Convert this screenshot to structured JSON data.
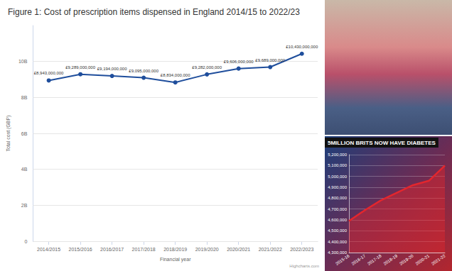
{
  "chart_data": [
    {
      "type": "line",
      "title": "Figure 1: Cost of prescription items dispensed in England 2014/15 to 2022/23",
      "x_label": "Financial year",
      "y_label": "Total cost (GBP)",
      "credit": "Highcharts.com",
      "categories": [
        "2014/2015",
        "2015/2016",
        "2016/2017",
        "2017/2018",
        "2018/2019",
        "2019/2020",
        "2020/2021",
        "2021/2022",
        "2022/2023"
      ],
      "values": [
        8943000000,
        9289000000,
        9194000000,
        9095000000,
        8834000000,
        9282000000,
        9606000000,
        9689000000,
        10430000000
      ],
      "value_labels": [
        "£8,943,000,000",
        "£9,289,000,000",
        "£9,194,000,000",
        "£9,095,000,000",
        "£8,834,000,000",
        "£9,282,000,000",
        "£9,606,000,000",
        "£9,689,000,000",
        "£10,430,000,000"
      ],
      "color": "#1f4e9c",
      "marker": "circle",
      "data_labels": true,
      "ylim": [
        0,
        12000000000
      ],
      "yticks": [
        0,
        {
          "value": 2000000000,
          "label": "2B"
        },
        {
          "value": 4000000000,
          "label": "4B"
        },
        {
          "value": 6000000000,
          "label": "6B"
        },
        {
          "value": 8000000000,
          "label": "8B"
        },
        {
          "value": 10000000000,
          "label": "10B"
        }
      ],
      "grid": true
    },
    {
      "type": "area",
      "title": "5MILLION BRITS NOW HAVE DIABETES",
      "categories": [
        "2015-16",
        "2016-17",
        "2017-18",
        "2018-19",
        "2019-20",
        "2020-21",
        "2021-22"
      ],
      "values": [
        4590000,
        4690000,
        4780000,
        4850000,
        4920000,
        4960000,
        5100000
      ],
      "color": "#e3262d",
      "marker": "none",
      "ylim": [
        4300000,
        5200000
      ],
      "yticks": [
        {
          "value": 4300000,
          "label": "4,300,000"
        },
        {
          "value": 4400000,
          "label": "4,400,000"
        },
        {
          "value": 4500000,
          "label": "4,500,000"
        },
        {
          "value": 4600000,
          "label": "4,600,000"
        },
        {
          "value": 4700000,
          "label": "4,700,000"
        },
        {
          "value": 4800000,
          "label": "4,800,000"
        },
        {
          "value": 4900000,
          "label": "4,900,000"
        },
        {
          "value": 5000000,
          "label": "5,000,000"
        },
        {
          "value": 5100000,
          "label": "5,100,000"
        },
        {
          "value": 5200000,
          "label": "5,200,000"
        }
      ],
      "grid": true
    }
  ]
}
